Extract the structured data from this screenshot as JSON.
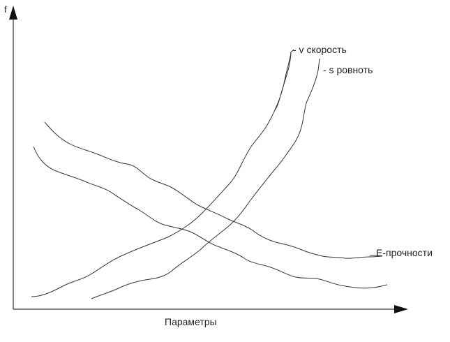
{
  "axes": {
    "y_label": "f",
    "x_label": "Параметры"
  },
  "curves": [
    {
      "key": "v",
      "label": "- v скорость",
      "color": "#333333"
    },
    {
      "key": "s",
      "label": "- s ровноть",
      "color": "#333333"
    },
    {
      "key": "e",
      "label": "E-прочности",
      "color": "#333333"
    }
  ],
  "colors": {
    "background": "#ffffff",
    "ink": "#333333"
  }
}
